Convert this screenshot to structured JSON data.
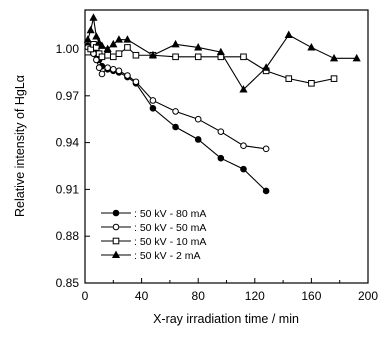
{
  "chart_data": {
    "type": "line",
    "xlabel": "X-ray irradiation time / min",
    "ylabel": "Relative intensity of HgLα",
    "xlim": [
      0,
      200
    ],
    "ylim": [
      0.85,
      1.025
    ],
    "xticks": [
      0,
      40,
      80,
      120,
      160,
      200
    ],
    "yticks": [
      0.85,
      0.88,
      0.91,
      0.94,
      0.97,
      1.0
    ],
    "ytick_labels": [
      "0.85",
      "0.88",
      "0.91",
      "0.94",
      "0.97",
      "1.00"
    ],
    "legend_position": "bottom-left",
    "grid": false,
    "series": [
      {
        "name": ": 50 kV - 80 mA",
        "marker": "filled-circle",
        "x": [
          2,
          4,
          6,
          8,
          10,
          12,
          16,
          20,
          24,
          30,
          36,
          48,
          64,
          80,
          96,
          112,
          128
        ],
        "y": [
          1.002,
          1.0,
          0.999,
          0.996,
          0.993,
          0.989,
          0.987,
          0.986,
          0.985,
          0.982,
          0.978,
          0.962,
          0.95,
          0.942,
          0.93,
          0.923,
          0.909
        ]
      },
      {
        "name": ": 50 kV - 50 mA",
        "marker": "open-circle",
        "x": [
          2,
          4,
          6,
          8,
          10,
          12,
          16,
          20,
          24,
          30,
          36,
          48,
          64,
          80,
          96,
          112,
          128
        ],
        "y": [
          1.001,
          1.0,
          0.997,
          0.993,
          0.988,
          0.984,
          0.988,
          0.987,
          0.986,
          0.983,
          0.979,
          0.967,
          0.96,
          0.955,
          0.947,
          0.938,
          0.936
        ]
      },
      {
        "name": ": 50 kV - 10 mA",
        "marker": "open-square",
        "x": [
          2,
          4,
          6,
          8,
          10,
          12,
          16,
          20,
          24,
          30,
          36,
          48,
          64,
          80,
          96,
          112,
          128,
          144,
          160,
          176
        ],
        "y": [
          0.998,
          1.0,
          1.003,
          1.001,
          0.997,
          0.995,
          0.996,
          0.995,
          0.997,
          1.001,
          0.996,
          0.996,
          0.995,
          0.995,
          0.995,
          0.995,
          0.986,
          0.981,
          0.978,
          0.981
        ]
      },
      {
        "name": ": 50 kV - 2 mA",
        "marker": "filled-triangle",
        "x": [
          2,
          4,
          6,
          8,
          10,
          12,
          16,
          20,
          24,
          30,
          48,
          64,
          80,
          96,
          112,
          128,
          144,
          160,
          176,
          192
        ],
        "y": [
          1.006,
          1.012,
          1.02,
          1.008,
          1.004,
          1.002,
          1.0,
          1.003,
          1.006,
          1.006,
          0.996,
          1.003,
          1.001,
          0.998,
          0.974,
          0.988,
          1.009,
          1.001,
          0.994,
          0.994
        ]
      }
    ]
  }
}
